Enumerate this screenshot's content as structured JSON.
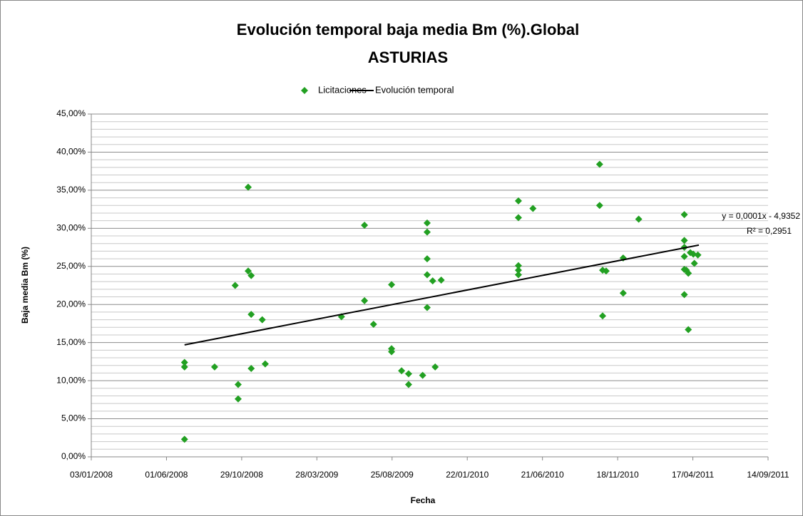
{
  "chart_data": {
    "type": "scatter",
    "title": "Evolución temporal baja media Bm (%).Global",
    "subtitle": "ASTURIAS",
    "x_label": "Fecha",
    "y_label": "Baja media Bm (%)",
    "legend": "top",
    "grid": true,
    "xlim": [
      39450,
      40800
    ],
    "xticks": [
      {
        "value": 39450,
        "label": "03/01/2008"
      },
      {
        "value": 39600,
        "label": "01/06/2008"
      },
      {
        "value": 39750,
        "label": "29/10/2008"
      },
      {
        "value": 39900,
        "label": "28/03/2009"
      },
      {
        "value": 40050,
        "label": "25/08/2009"
      },
      {
        "value": 40200,
        "label": "22/01/2010"
      },
      {
        "value": 40350,
        "label": "21/06/2010"
      },
      {
        "value": 40500,
        "label": "18/11/2010"
      },
      {
        "value": 40650,
        "label": "17/04/2011"
      },
      {
        "value": 40800,
        "label": "14/09/2011"
      }
    ],
    "ylim": [
      0,
      45
    ],
    "yticks": [
      {
        "value": 0,
        "label": "0,00%"
      },
      {
        "value": 5,
        "label": "5,00%"
      },
      {
        "value": 10,
        "label": "10,00%"
      },
      {
        "value": 15,
        "label": "15,00%"
      },
      {
        "value": 20,
        "label": "20,00%"
      },
      {
        "value": 25,
        "label": "25,00%"
      },
      {
        "value": 30,
        "label": "30,00%"
      },
      {
        "value": 35,
        "label": "35,00%"
      },
      {
        "value": 40,
        "label": "40,00%"
      },
      {
        "value": 45,
        "label": "45,00%"
      }
    ],
    "minor_yticks": [
      1,
      2,
      3,
      4,
      6,
      7,
      8,
      9,
      11,
      12,
      13,
      14,
      16,
      17,
      18,
      19,
      21,
      22,
      23,
      24,
      26,
      27,
      28,
      29,
      31,
      32,
      33,
      34,
      36,
      37,
      38,
      39,
      41,
      42,
      43,
      44
    ],
    "series": [
      {
        "name": "Licitaciones",
        "color": "#22a022",
        "marker": "diamond",
        "x": [
          39636,
          39636,
          39636,
          39696,
          39737,
          39743,
          39743,
          39763,
          39763,
          39769,
          39769,
          39769,
          39791,
          39797,
          39949,
          39995,
          39995,
          40013,
          40049,
          40049,
          40049,
          40069,
          40083,
          40083,
          40111,
          40120,
          40120,
          40120,
          40120,
          40120,
          40131,
          40148,
          40136,
          40302,
          40302,
          40302,
          40302,
          40302,
          40331,
          40464,
          40464,
          40470,
          40477,
          40470,
          40511,
          40511,
          40542,
          40633,
          40633,
          40633,
          40633,
          40633,
          40633,
          40637,
          40641,
          40641,
          40645,
          40651,
          40653,
          40660
        ],
        "values": [
          12.4,
          11.8,
          2.3,
          11.8,
          22.5,
          9.5,
          7.6,
          35.4,
          24.4,
          23.8,
          18.7,
          11.6,
          18.0,
          12.2,
          18.4,
          30.4,
          20.5,
          17.4,
          22.6,
          14.2,
          13.8,
          11.3,
          10.9,
          9.5,
          10.7,
          30.7,
          29.5,
          26.0,
          23.9,
          19.6,
          23.1,
          23.2,
          11.8,
          33.6,
          31.4,
          25.1,
          24.5,
          23.9,
          32.6,
          38.4,
          33.0,
          24.5,
          24.4,
          18.5,
          26.1,
          21.5,
          31.2,
          31.8,
          28.4,
          27.5,
          26.3,
          24.6,
          21.3,
          24.5,
          24.1,
          16.7,
          26.8,
          26.6,
          25.4,
          26.5
        ]
      },
      {
        "name": "Evolución temporal",
        "color": "#000000",
        "type": "line",
        "x": [
          39636,
          40662
        ],
        "values": [
          14.7,
          27.8
        ]
      }
    ],
    "annotations": [
      "y = 0,0001x - 4,9352",
      "R² = 0,2951"
    ]
  }
}
